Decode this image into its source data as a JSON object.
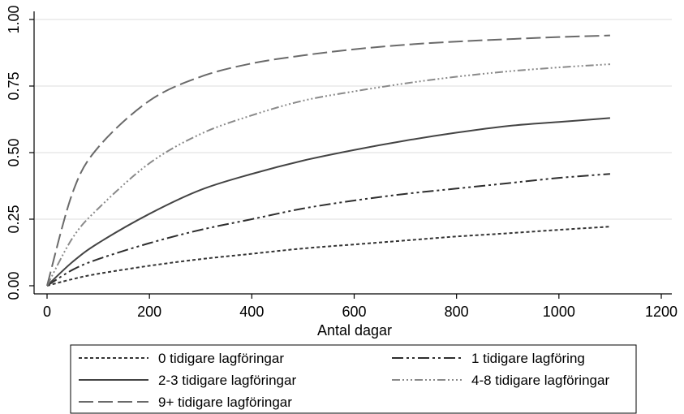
{
  "chart_data": {
    "type": "line",
    "title": "",
    "xlabel": "Antal dagar",
    "ylabel": "",
    "xlim": [
      0,
      1200
    ],
    "ylim": [
      0,
      1.0
    ],
    "xticks": [
      0,
      200,
      400,
      600,
      800,
      1000,
      1200
    ],
    "yticks": [
      0.0,
      0.25,
      0.5,
      0.75,
      1.0
    ],
    "ytick_labels": [
      "0.00",
      "0.25",
      "0.50",
      "0.75",
      "1.00"
    ],
    "grid": "horizontal",
    "legend_position": "bottom",
    "x": [
      0,
      50,
      100,
      200,
      300,
      400,
      500,
      600,
      700,
      800,
      900,
      1000,
      1100
    ],
    "series": [
      {
        "name": "0 tidigare lagföringar",
        "dash": "4,3",
        "color": "#333333",
        "values": [
          0.0,
          0.025,
          0.045,
          0.075,
          0.1,
          0.12,
          0.14,
          0.155,
          0.17,
          0.185,
          0.197,
          0.21,
          0.222
        ]
      },
      {
        "name": "1 tidigare lagföring",
        "dash": "14,4,3,4,3,4",
        "color": "#2e2e2e",
        "values": [
          0.0,
          0.06,
          0.1,
          0.16,
          0.21,
          0.25,
          0.29,
          0.32,
          0.345,
          0.365,
          0.385,
          0.405,
          0.42
        ]
      },
      {
        "name": "2-3 tidigare lagföringar",
        "dash": "",
        "color": "#444444",
        "values": [
          0.0,
          0.09,
          0.16,
          0.27,
          0.36,
          0.42,
          0.47,
          0.51,
          0.545,
          0.575,
          0.6,
          0.615,
          0.63
        ]
      },
      {
        "name": "4-8 tidigare lagföringar",
        "dash": "10,3,2,3,2,3,2,3",
        "color": "#8a8a8a",
        "values": [
          0.0,
          0.18,
          0.29,
          0.46,
          0.57,
          0.64,
          0.695,
          0.73,
          0.76,
          0.785,
          0.805,
          0.82,
          0.832
        ]
      },
      {
        "name": "9+ tidigare lagföringar",
        "dash": "18,6",
        "color": "#6a6a6a",
        "values": [
          0.0,
          0.35,
          0.52,
          0.695,
          0.785,
          0.835,
          0.865,
          0.888,
          0.905,
          0.917,
          0.926,
          0.934,
          0.94
        ]
      }
    ]
  }
}
